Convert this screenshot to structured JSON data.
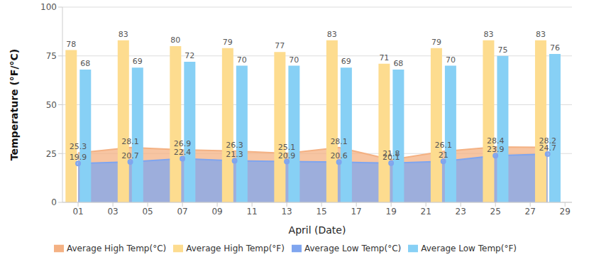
{
  "chart_data": {
    "type": "bar",
    "x_label": "April (Date)",
    "y_label": "Temperature (°F/°C)",
    "x": [
      1,
      4,
      7,
      10,
      13,
      16,
      19,
      22,
      25,
      28
    ],
    "xlim": [
      0.1,
      29.4
    ],
    "xticks": [
      {
        "value": 1,
        "label": "01"
      },
      {
        "value": 3,
        "label": "03"
      },
      {
        "value": 5,
        "label": "05"
      },
      {
        "value": 7,
        "label": "07"
      },
      {
        "value": 9,
        "label": "09"
      },
      {
        "value": 11,
        "label": "11"
      },
      {
        "value": 13,
        "label": "13"
      },
      {
        "value": 15,
        "label": "15"
      },
      {
        "value": 17,
        "label": "17"
      },
      {
        "value": 19,
        "label": "19"
      },
      {
        "value": 21,
        "label": "21"
      },
      {
        "value": 23,
        "label": "23"
      },
      {
        "value": 25,
        "label": "25"
      },
      {
        "value": 27,
        "label": "27"
      },
      {
        "value": 29,
        "label": "29"
      }
    ],
    "ylim": [
      0,
      100
    ],
    "yticks": [
      0,
      25,
      50,
      75,
      100
    ],
    "grid": true,
    "legend": "bottom",
    "data_labels": true,
    "series": [
      {
        "name": "Average High Temp(°F)",
        "type": "bar",
        "color": "#fddc8f",
        "values": [
          78,
          83,
          80,
          79,
          77,
          83,
          71,
          79,
          83,
          83
        ]
      },
      {
        "name": "Average Low Temp(°F)",
        "type": "bar",
        "color": "#87d0f5",
        "values": [
          68,
          69,
          72,
          70,
          70,
          69,
          68,
          70,
          75,
          76
        ]
      },
      {
        "name": "Average High Temp(°C)",
        "type": "area",
        "color": "#f4b183",
        "values": [
          25.3,
          28.1,
          26.9,
          26.3,
          25.1,
          28.1,
          21.8,
          26.1,
          28.4,
          28.2
        ]
      },
      {
        "name": "Average Low Temp(°C)",
        "type": "area",
        "color": "#7fa5ef",
        "marker": "circle",
        "values": [
          19.9,
          20.7,
          22.4,
          21.3,
          20.9,
          20.6,
          20.1,
          21,
          23.9,
          24.7
        ]
      }
    ]
  }
}
